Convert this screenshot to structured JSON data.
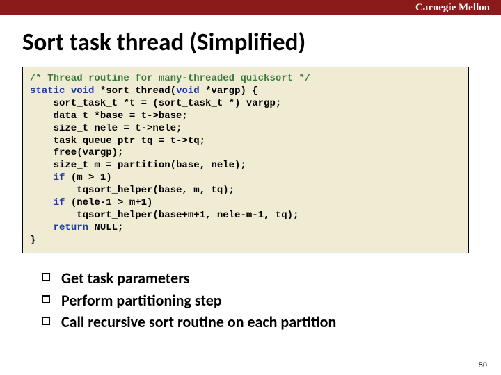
{
  "brand": "Carnegie Mellon",
  "title": "Sort task thread (Simplified)",
  "code": {
    "lines": [
      {
        "segs": [
          {
            "t": "/* Thread routine for many-threaded quicksort */",
            "cls": "c-comment"
          }
        ]
      },
      {
        "segs": [
          {
            "t": "static",
            "cls": "c-kw"
          },
          {
            "t": " "
          },
          {
            "t": "void",
            "cls": "c-kw"
          },
          {
            "t": " *sort_thread("
          },
          {
            "t": "void",
            "cls": "c-kw"
          },
          {
            "t": " *vargp) {"
          }
        ]
      },
      {
        "segs": [
          {
            "t": "    sort_task_t *t = (sort_task_t *) vargp;"
          }
        ]
      },
      {
        "segs": [
          {
            "t": "    data_t *base = t->base;"
          }
        ]
      },
      {
        "segs": [
          {
            "t": "    size_t nele = t->nele;"
          }
        ]
      },
      {
        "segs": [
          {
            "t": "    task_queue_ptr tq = t->tq;"
          }
        ]
      },
      {
        "segs": [
          {
            "t": "    free(vargp);"
          }
        ]
      },
      {
        "segs": [
          {
            "t": "    size_t m = partition(base, nele);"
          }
        ]
      },
      {
        "segs": [
          {
            "t": "    "
          },
          {
            "t": "if",
            "cls": "c-kw"
          },
          {
            "t": " (m > 1)"
          }
        ]
      },
      {
        "segs": [
          {
            "t": "        tqsort_helper(base, m, tq);"
          }
        ]
      },
      {
        "segs": [
          {
            "t": "    "
          },
          {
            "t": "if",
            "cls": "c-kw"
          },
          {
            "t": " (nele-1 > m+1)"
          }
        ]
      },
      {
        "segs": [
          {
            "t": "        tqsort_helper(base+m+1, nele-m-1, tq);"
          }
        ]
      },
      {
        "segs": [
          {
            "t": "    "
          },
          {
            "t": "return",
            "cls": "c-kw"
          },
          {
            "t": " NULL;"
          }
        ]
      },
      {
        "segs": [
          {
            "t": "}"
          }
        ]
      }
    ]
  },
  "bullets": [
    "Get task parameters",
    "Perform partitioning step",
    "Call recursive sort routine on each partition"
  ],
  "pagenum": "50",
  "colors": {
    "topbar": "#8b1a1a",
    "codebg": "#f0ecd4",
    "comment": "#3a7a3a",
    "keyword": "#1a3aa0"
  }
}
